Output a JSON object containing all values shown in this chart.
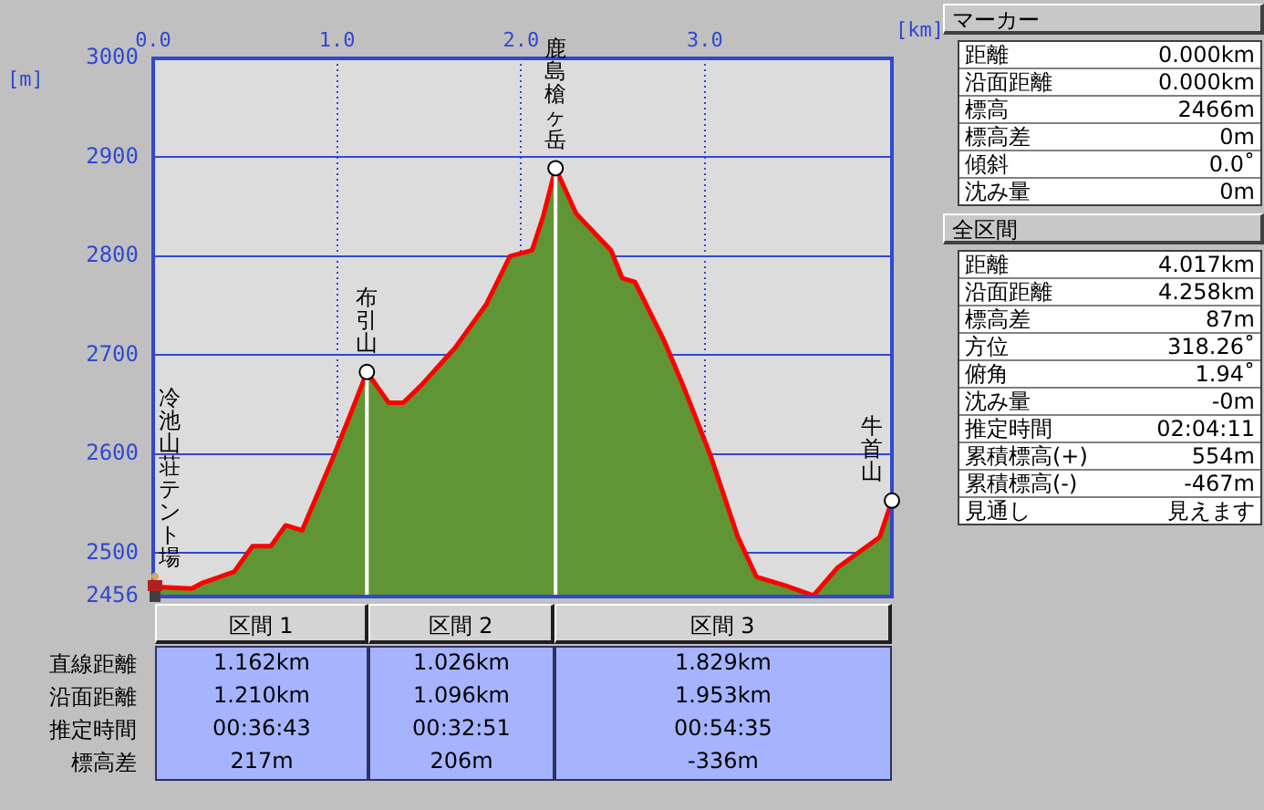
{
  "chart_data": [
    {
      "type": "area",
      "xlabel": "[km]",
      "ylabel": "[m]",
      "x": [
        0,
        0.21,
        0.27,
        0.44,
        0.54,
        0.64,
        0.72,
        0.81,
        0.97,
        1.07,
        1.162,
        1.28,
        1.36,
        1.46,
        1.61,
        1.64,
        1.81,
        1.94,
        2.06,
        2.12,
        2.188,
        2.3,
        2.49,
        2.55,
        2.62,
        2.78,
        2.88,
        3.03,
        3.18,
        3.28,
        3.44,
        3.59,
        3.72,
        3.95,
        4.017
      ],
      "series": [
        {
          "color": "#5f9534",
          "values": [
            2466,
            2464,
            2470,
            2481,
            2507,
            2507,
            2528,
            2523,
            2593,
            2639,
            2683,
            2652,
            2652,
            2670,
            2701,
            2707,
            2751,
            2800,
            2806,
            2840,
            2889,
            2843,
            2806,
            2778,
            2774,
            2714,
            2670,
            2599,
            2516,
            2476,
            2467,
            2457,
            2485,
            2516,
            2553
          ]
        }
      ],
      "xlim": [
        0,
        4.017
      ],
      "xticks": [
        {
          "value": 0,
          "label": "0.0"
        },
        {
          "value": 1,
          "label": "1.0"
        },
        {
          "value": 2,
          "label": "2.0"
        },
        {
          "value": 3,
          "label": "3.0"
        }
      ],
      "ylim": [
        2456,
        3000
      ],
      "yticks": [
        2456,
        2500,
        2600,
        2700,
        2800,
        2900,
        3000
      ],
      "grid": true,
      "legend": false,
      "ref_lines": [
        {
          "axis": "x",
          "value": 1.162,
          "color": "#ffffff"
        },
        {
          "axis": "x",
          "value": 2.188,
          "color": "#ffffff"
        }
      ],
      "annotations": [
        {
          "text": "冷池山荘テント場",
          "x": 0,
          "y": 2466
        },
        {
          "text": "布引山",
          "x": 1.162,
          "y": 2683
        },
        {
          "text": "鹿島槍ヶ岳",
          "x": 2.188,
          "y": 2889
        },
        {
          "text": "牛首山",
          "x": 4.017,
          "y": 2553
        }
      ]
    },
    {
      "type": "other",
      "title": "マーカー",
      "annotations": [
        "距離",
        "0.000km",
        "沿面距離",
        "0.000km",
        "標高",
        "2466m",
        "標高差",
        "0m",
        "傾斜",
        "0.0˚",
        "沈み量",
        "0m"
      ]
    },
    {
      "type": "other",
      "title": "全区間",
      "annotations": [
        "距離",
        "4.017km",
        "沿面距離",
        "4.258km",
        "標高差",
        "87m",
        "方位",
        "318.26˚",
        "俯角",
        "1.94˚",
        "沈み量",
        "-0m",
        "推定時間",
        "02:04:11",
        "累積標高(+)",
        "554m",
        "累積標高(-)",
        "-467m",
        "見通し",
        "見えます"
      ]
    },
    {
      "type": "other",
      "categories": [
        "区間 1",
        "区間 2",
        "区間 3"
      ],
      "y_categories": [
        "直線距離",
        "沿面距離",
        "推定時間",
        "標高差"
      ],
      "annotations": [
        "1.162km",
        "1.026km",
        "1.829km",
        "1.210km",
        "1.096km",
        "1.953km",
        "00:36:43",
        "00:32:51",
        "00:54:35",
        "217m",
        "206m",
        "-336m"
      ]
    }
  ]
}
